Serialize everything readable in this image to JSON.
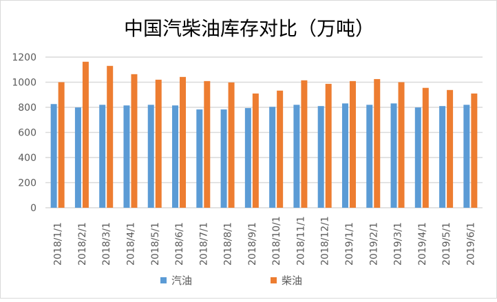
{
  "chart_data": {
    "type": "bar",
    "title": "中国汽柴油库存对比（万吨）",
    "categories": [
      "2018/1/1",
      "2018/2/1",
      "2018/3/1",
      "2018/4/1",
      "2018/5/1",
      "2018/6/1",
      "2018/7/1",
      "2018/8/1",
      "2018/9/1",
      "2018/10/1",
      "2018/11/1",
      "2018/12/1",
      "2019/1/1",
      "2019/2/1",
      "2019/3/1",
      "2019/4/1",
      "2019/5/1",
      "2019/6/1"
    ],
    "series": [
      {
        "name": "汽油",
        "color": "#5b9bd5",
        "values": [
          826,
          799,
          820,
          815,
          820,
          815,
          783,
          783,
          794,
          804,
          820,
          810,
          831,
          820,
          831,
          799,
          810,
          820
        ]
      },
      {
        "name": "柴油",
        "color": "#ed7d31",
        "values": [
          1000,
          1163,
          1130,
          1064,
          1020,
          1042,
          1009,
          998,
          910,
          933,
          1015,
          987,
          1009,
          1025,
          1000,
          955,
          938,
          910
        ]
      }
    ],
    "ylim": [
      0,
      1200
    ],
    "yticks": [
      0,
      200,
      400,
      600,
      800,
      1000,
      1200
    ],
    "grid": true,
    "legend": "bottom"
  }
}
